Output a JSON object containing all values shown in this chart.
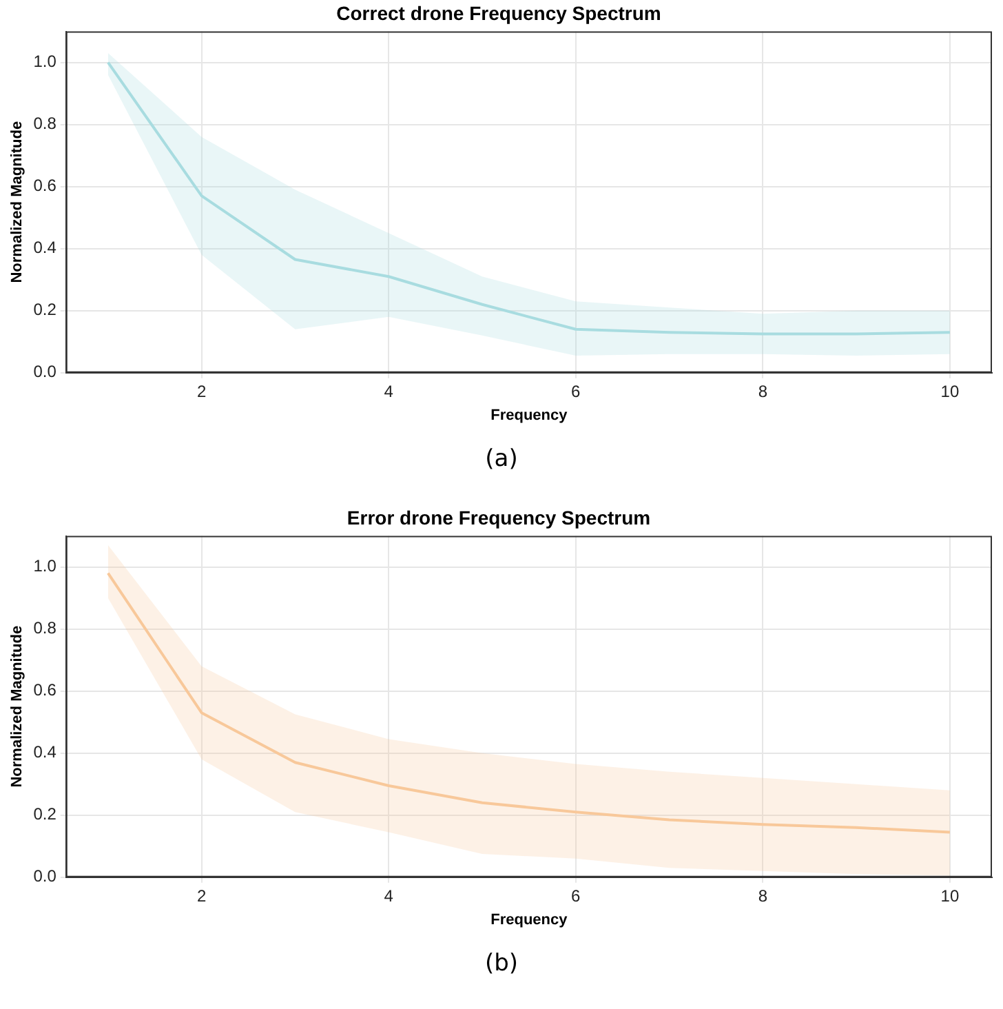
{
  "chart_data": [
    {
      "type": "line",
      "title": "Correct drone Frequency Spectrum",
      "xlabel": "Frequency",
      "ylabel": "Normalized Magnitude",
      "x": [
        1,
        2,
        3,
        4,
        5,
        6,
        7,
        8,
        9,
        10
      ],
      "series": [
        {
          "color": "#a8dce0",
          "values": [
            1.0,
            0.57,
            0.365,
            0.31,
            0.22,
            0.14,
            0.13,
            0.125,
            0.125,
            0.13
          ],
          "lower": [
            0.96,
            0.38,
            0.14,
            0.18,
            0.12,
            0.055,
            0.06,
            0.06,
            0.055,
            0.06
          ],
          "upper": [
            1.03,
            0.76,
            0.59,
            0.45,
            0.31,
            0.23,
            0.21,
            0.19,
            0.2,
            0.2
          ]
        }
      ],
      "xlim": [
        0.55,
        10.45
      ],
      "xticks": [
        2,
        4,
        6,
        8,
        10
      ],
      "ylim": [
        0,
        1.1
      ],
      "yticks": [
        {
          "value": 0,
          "label": "0.0"
        },
        {
          "value": 0.2,
          "label": "0.2"
        },
        {
          "value": 0.4,
          "label": "0.4"
        },
        {
          "value": 0.6,
          "label": "0.6"
        },
        {
          "value": 0.8,
          "label": "0.8"
        },
        {
          "value": 1,
          "label": "1.0"
        }
      ],
      "grid": true,
      "legend": false,
      "annotations": [
        "(a)"
      ]
    },
    {
      "type": "line",
      "title": "Error drone Frequency Spectrum",
      "xlabel": "Frequency",
      "ylabel": "Normalized Magnitude",
      "x": [
        1,
        2,
        3,
        4,
        5,
        6,
        7,
        8,
        9,
        10
      ],
      "series": [
        {
          "color": "#f8c99a",
          "values": [
            0.98,
            0.53,
            0.37,
            0.295,
            0.24,
            0.21,
            0.185,
            0.17,
            0.16,
            0.145
          ],
          "lower": [
            0.9,
            0.38,
            0.21,
            0.145,
            0.075,
            0.06,
            0.03,
            0.02,
            0.01,
            0.005
          ],
          "upper": [
            1.07,
            0.68,
            0.525,
            0.445,
            0.4,
            0.365,
            0.34,
            0.32,
            0.3,
            0.28
          ]
        }
      ],
      "xlim": [
        0.55,
        10.45
      ],
      "xticks": [
        2,
        4,
        6,
        8,
        10
      ],
      "ylim": [
        0,
        1.1
      ],
      "yticks": [
        {
          "value": 0,
          "label": "0.0"
        },
        {
          "value": 0.2,
          "label": "0.2"
        },
        {
          "value": 0.4,
          "label": "0.4"
        },
        {
          "value": 0.6,
          "label": "0.6"
        },
        {
          "value": 0.8,
          "label": "0.8"
        },
        {
          "value": 1,
          "label": "1.0"
        }
      ],
      "grid": true,
      "legend": false,
      "annotations": [
        "(b)"
      ]
    }
  ]
}
